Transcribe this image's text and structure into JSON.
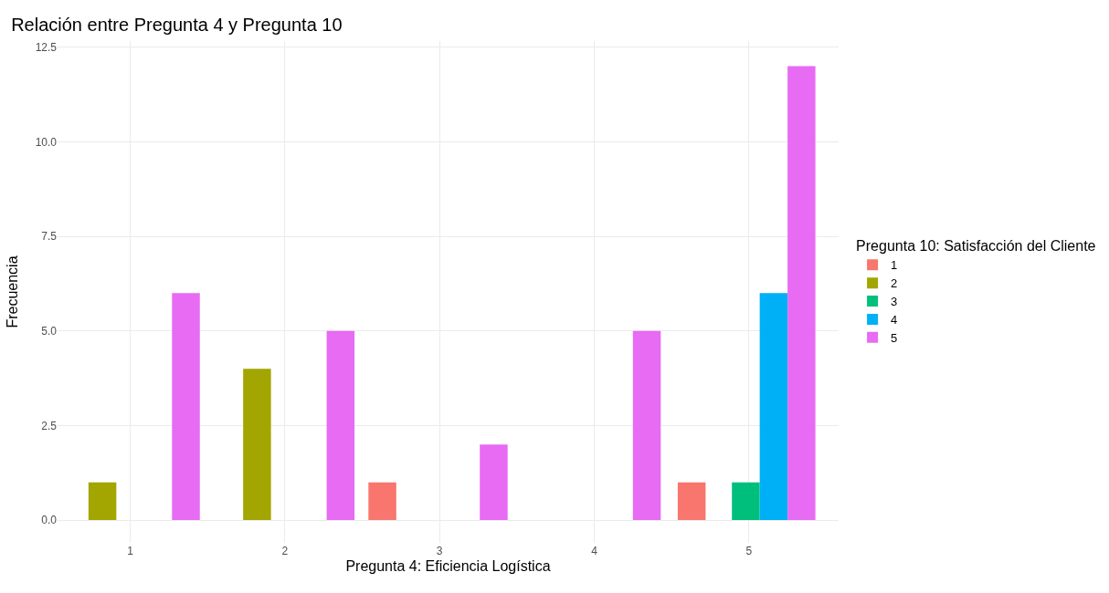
{
  "chart_data": {
    "type": "bar",
    "title": "Relación entre Pregunta 4 y Pregunta 10",
    "xlabel": "Pregunta 4: Eficiencia Logística",
    "ylabel": "Frecuencia",
    "legend_title": "Pregunta 10: Satisfacción del Cliente",
    "series": [
      {
        "name": "1",
        "color": "#f8766d",
        "x": [
          2.63,
          4.63
        ],
        "values": [
          1,
          1
        ]
      },
      {
        "name": "2",
        "color": "#a3a500",
        "x": [
          0.82,
          1.82
        ],
        "values": [
          1,
          4
        ]
      },
      {
        "name": "3",
        "color": "#00bf7d",
        "x": [
          4.98
        ],
        "values": [
          1
        ]
      },
      {
        "name": "4",
        "color": "#00b0f6",
        "x": [
          5.16
        ],
        "values": [
          6
        ]
      },
      {
        "name": "5",
        "color": "#e76bf3",
        "x": [
          1.36,
          2.36,
          3.35,
          4.34,
          5.34
        ],
        "values": [
          6,
          5,
          2,
          5,
          12
        ]
      }
    ],
    "xlim": [
      0.53,
      5.58
    ],
    "xticks": [
      1,
      2,
      3,
      4,
      5
    ],
    "ylim": [
      -0.6,
      12.66
    ],
    "yticks": [
      {
        "value": 0,
        "label": "0.0"
      },
      {
        "value": 2.5,
        "label": "2.5"
      },
      {
        "value": 5,
        "label": "5.0"
      },
      {
        "value": 7.5,
        "label": "7.5"
      },
      {
        "value": 10,
        "label": "10.0"
      },
      {
        "value": 12.5,
        "label": "12.5"
      }
    ],
    "grid": true,
    "legend": "right"
  }
}
